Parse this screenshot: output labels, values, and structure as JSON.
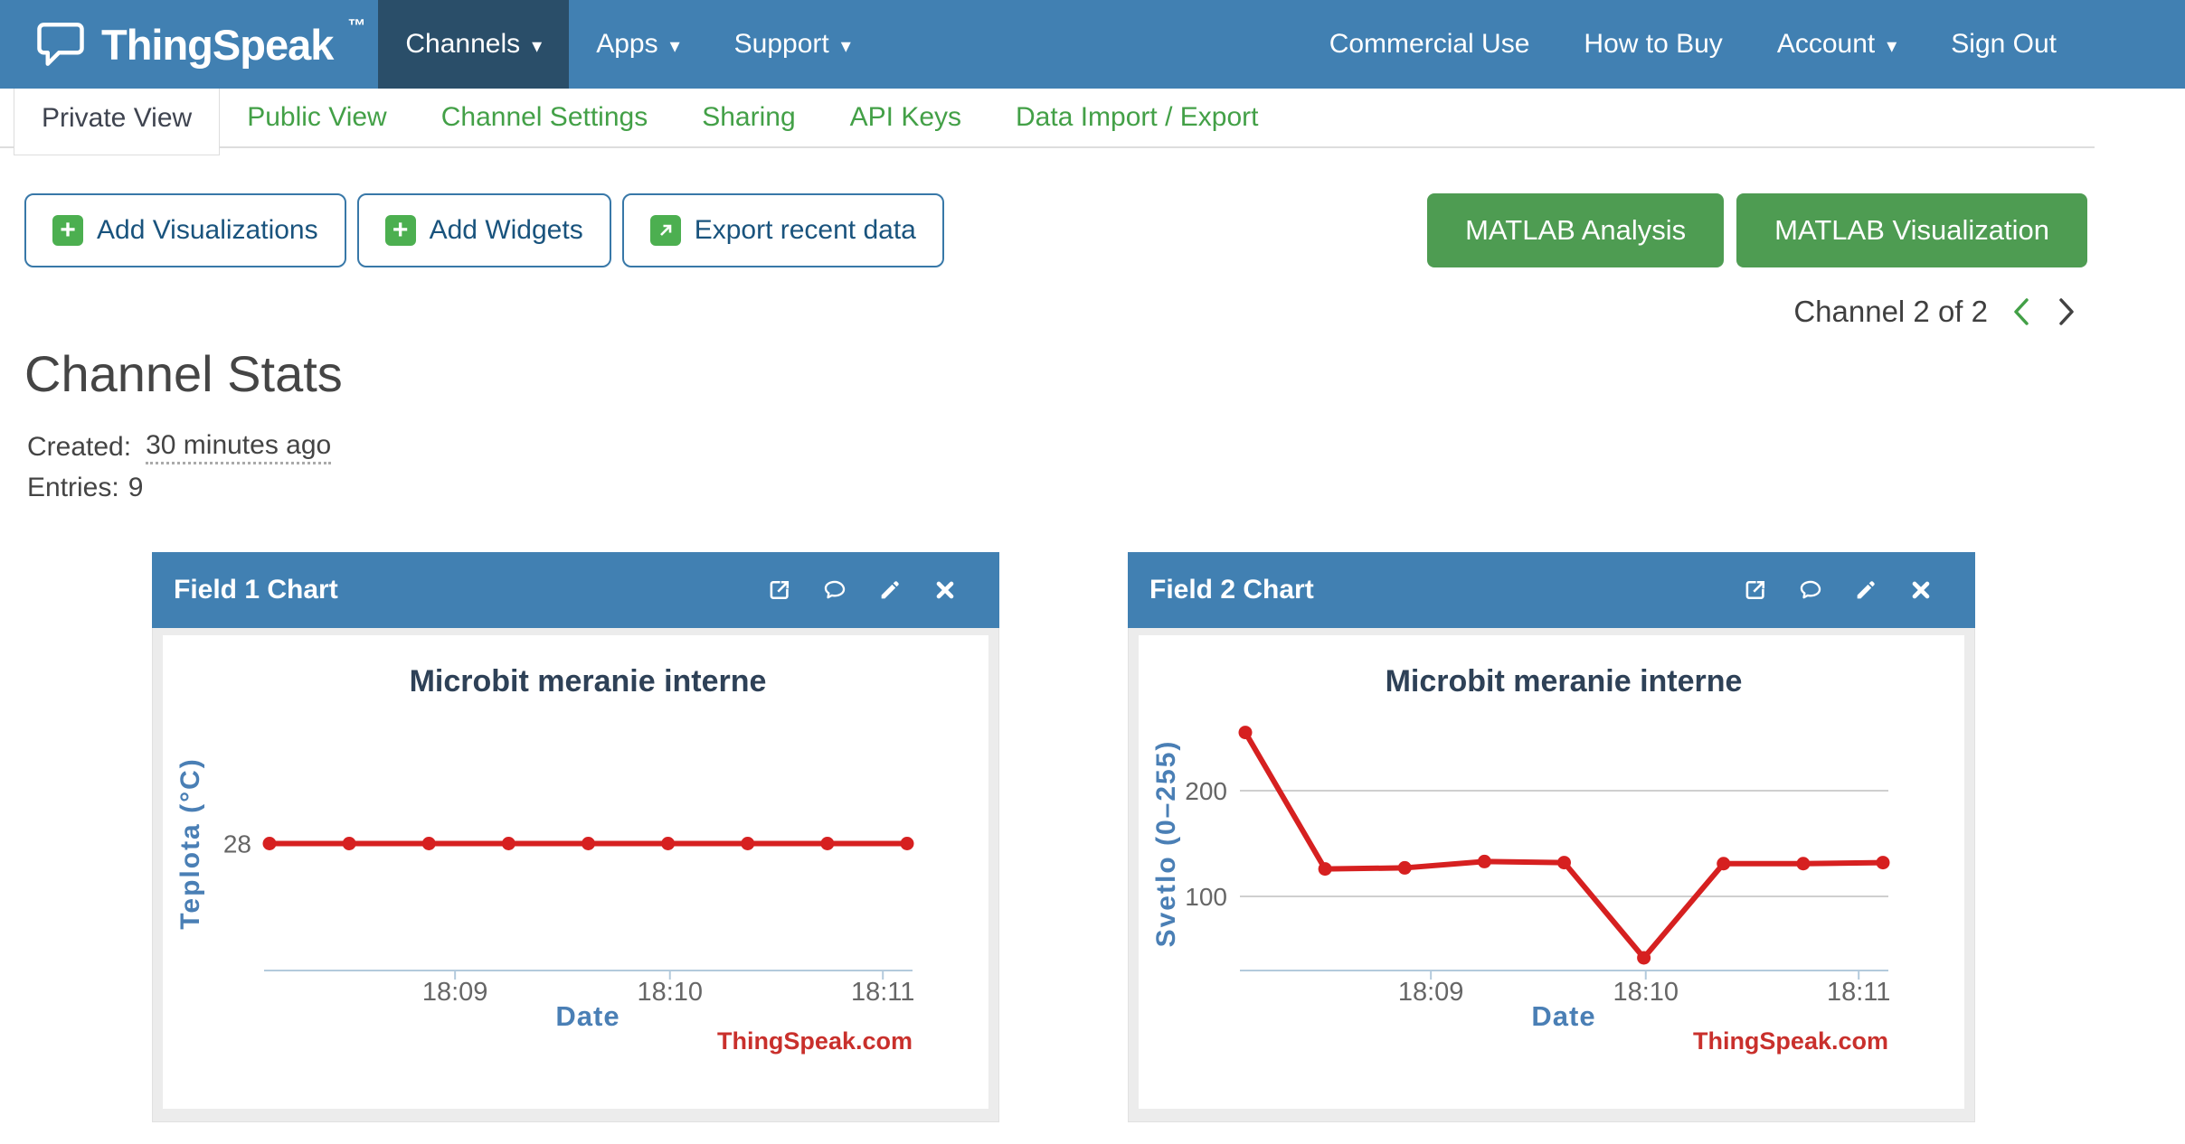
{
  "colors": {
    "navbar": "#4180b2",
    "navbar_active": "#2a4e69",
    "green": "#43a047",
    "btn_green": "#4e9c52",
    "icon_green": "#4caf50",
    "outline_blue": "#3878a8",
    "outline_text": "#19537d",
    "line_red": "#d62020",
    "chart_title": "#2e4157",
    "axis_label": "#4a7fb5",
    "tick_text": "#666666",
    "grid_line": "#cfcfcf",
    "axis_line": "#b3cadc",
    "watermark": "#c9302c"
  },
  "icons": {
    "caret_down": "▾",
    "plus": "+"
  },
  "watermark": "ThingSpeak.com",
  "navbar": {
    "brand": "ThingSpeak",
    "trademark": "™",
    "left": [
      {
        "label": "Channels"
      },
      {
        "label": "Apps"
      },
      {
        "label": "Support"
      }
    ],
    "right": [
      {
        "label": "Commercial Use"
      },
      {
        "label": "How to Buy"
      },
      {
        "label": "Account"
      },
      {
        "label": "Sign Out"
      }
    ]
  },
  "tabs": [
    {
      "label": "Private View"
    },
    {
      "label": "Public View"
    },
    {
      "label": "Channel Settings"
    },
    {
      "label": "Sharing"
    },
    {
      "label": "API Keys"
    },
    {
      "label": "Data Import / Export"
    }
  ],
  "toolbar": {
    "add_visualizations": "Add Visualizations",
    "add_widgets": "Add Widgets",
    "export_recent_data": "Export recent data",
    "matlab_analysis": "MATLAB Analysis",
    "matlab_visualization": "MATLAB Visualization"
  },
  "pager": {
    "label": "Channel 2 of 2"
  },
  "page": {
    "heading": "Channel Stats",
    "created_label": "Created:",
    "created_value": "30 minutes ago",
    "entries_label": "Entries:",
    "entries_value": "9"
  },
  "panels": [
    {
      "title": "Field 1 Chart"
    },
    {
      "title": "Field 2 Chart"
    }
  ],
  "chart_data": [
    {
      "type": "line",
      "title": "Microbit meranie interne",
      "xlabel": "Date",
      "ylabel": "Teplota (°C)",
      "x_tick_labels": [
        "18:09",
        "18:10",
        "18:11"
      ],
      "y_ticks": [
        28
      ],
      "ylim": [
        27.5,
        28.5
      ],
      "grid": false,
      "values": [
        28,
        28,
        28,
        28,
        28,
        28,
        28,
        28,
        28
      ],
      "line_color": "#d62020",
      "legend": "none"
    },
    {
      "type": "line",
      "title": "Microbit meranie interne",
      "xlabel": "Date",
      "ylabel": "Svetlo (0–255)",
      "x_tick_labels": [
        "18:09",
        "18:10",
        "18:11"
      ],
      "y_ticks": [
        200,
        100
      ],
      "ylim": [
        30,
        270
      ],
      "grid": true,
      "values": [
        255,
        126,
        127,
        133,
        132,
        42,
        131,
        131,
        132
      ],
      "line_color": "#d62020",
      "legend": "none"
    }
  ]
}
